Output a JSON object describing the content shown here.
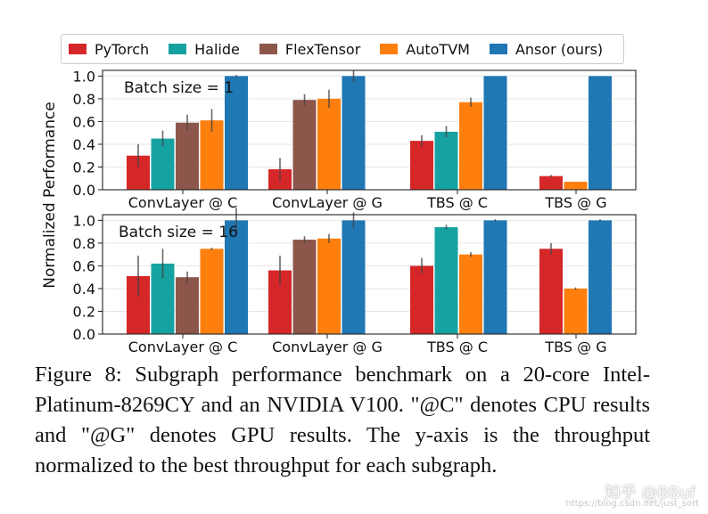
{
  "colors": {
    "PyTorch": "#d62728",
    "Halide": "#17a2a2",
    "FlexTensor": "#8c564b",
    "AutoTVM": "#ff7f0e",
    "Ansor (ours)": "#1f77b4"
  },
  "legend": [
    "PyTorch",
    "Halide",
    "FlexTensor",
    "AutoTVM",
    "Ansor (ours)"
  ],
  "caption": "Figure 8: Subgraph performance benchmark on a 20-core Intel-Platinum-8269CY and an NVIDIA V100. \"@C\" denotes CPU results and \"@G\" denotes GPU results. The y-axis is the throughput normalized to the best throughput for each subgraph.",
  "watermark": "知乎 @BBuf",
  "url_watermark": "https://blog.csdn.net/just_sort",
  "chart_data": {
    "type": "bar",
    "ylabel": "Normalized Performance",
    "ylim": [
      0,
      1.05
    ],
    "yticks": [
      "0.0",
      "0.2",
      "0.4",
      "0.6",
      "0.8",
      "1.0"
    ],
    "categories": [
      "ConvLayer @ C",
      "ConvLayer @ G",
      "TBS @ C",
      "TBS @ G"
    ],
    "panels": [
      {
        "title": "Batch size = 1",
        "groups": [
          {
            "bars": [
              {
                "series": "PyTorch",
                "value": 0.3,
                "err": 0.1
              },
              {
                "series": "Halide",
                "value": 0.45,
                "err": 0.07
              },
              {
                "series": "FlexTensor",
                "value": 0.59,
                "err": 0.07
              },
              {
                "series": "AutoTVM",
                "value": 0.61,
                "err": 0.1
              },
              {
                "series": "Ansor (ours)",
                "value": 1.0,
                "err": 0.01
              }
            ]
          },
          {
            "bars": [
              {
                "series": "PyTorch",
                "value": 0.18,
                "err": 0.1
              },
              {
                "series": "FlexTensor",
                "value": 0.79,
                "err": 0.05
              },
              {
                "series": "AutoTVM",
                "value": 0.8,
                "err": 0.08
              },
              {
                "series": "Ansor (ours)",
                "value": 1.0,
                "err": 0.05
              }
            ]
          },
          {
            "bars": [
              {
                "series": "PyTorch",
                "value": 0.43,
                "err": 0.05
              },
              {
                "series": "Halide",
                "value": 0.51,
                "err": 0.05
              },
              {
                "series": "AutoTVM",
                "value": 0.77,
                "err": 0.04
              },
              {
                "series": "Ansor (ours)",
                "value": 1.0,
                "err": 0.0
              }
            ]
          },
          {
            "bars": [
              {
                "series": "PyTorch",
                "value": 0.12,
                "err": 0.01
              },
              {
                "series": "AutoTVM",
                "value": 0.07,
                "err": 0.0
              },
              {
                "series": "Ansor (ours)",
                "value": 1.0,
                "err": 0.0
              }
            ]
          }
        ]
      },
      {
        "title": "Batch size = 16",
        "groups": [
          {
            "bars": [
              {
                "series": "PyTorch",
                "value": 0.51,
                "err": 0.18
              },
              {
                "series": "Halide",
                "value": 0.62,
                "err": 0.13
              },
              {
                "series": "FlexTensor",
                "value": 0.5,
                "err": 0.05
              },
              {
                "series": "AutoTVM",
                "value": 0.75,
                "err": 0.01
              },
              {
                "series": "Ansor (ours)",
                "value": 1.0,
                "err": 0.11
              }
            ]
          },
          {
            "bars": [
              {
                "series": "PyTorch",
                "value": 0.56,
                "err": 0.13
              },
              {
                "series": "FlexTensor",
                "value": 0.83,
                "err": 0.03
              },
              {
                "series": "AutoTVM",
                "value": 0.84,
                "err": 0.04
              },
              {
                "series": "Ansor (ours)",
                "value": 1.0,
                "err": 0.07
              }
            ]
          },
          {
            "bars": [
              {
                "series": "PyTorch",
                "value": 0.6,
                "err": 0.07
              },
              {
                "series": "Halide",
                "value": 0.94,
                "err": 0.02
              },
              {
                "series": "AutoTVM",
                "value": 0.7,
                "err": 0.02
              },
              {
                "series": "Ansor (ours)",
                "value": 1.0,
                "err": 0.01
              }
            ]
          },
          {
            "bars": [
              {
                "series": "PyTorch",
                "value": 0.75,
                "err": 0.05
              },
              {
                "series": "AutoTVM",
                "value": 0.4,
                "err": 0.01
              },
              {
                "series": "Ansor (ours)",
                "value": 1.0,
                "err": 0.01
              }
            ]
          }
        ]
      }
    ]
  }
}
